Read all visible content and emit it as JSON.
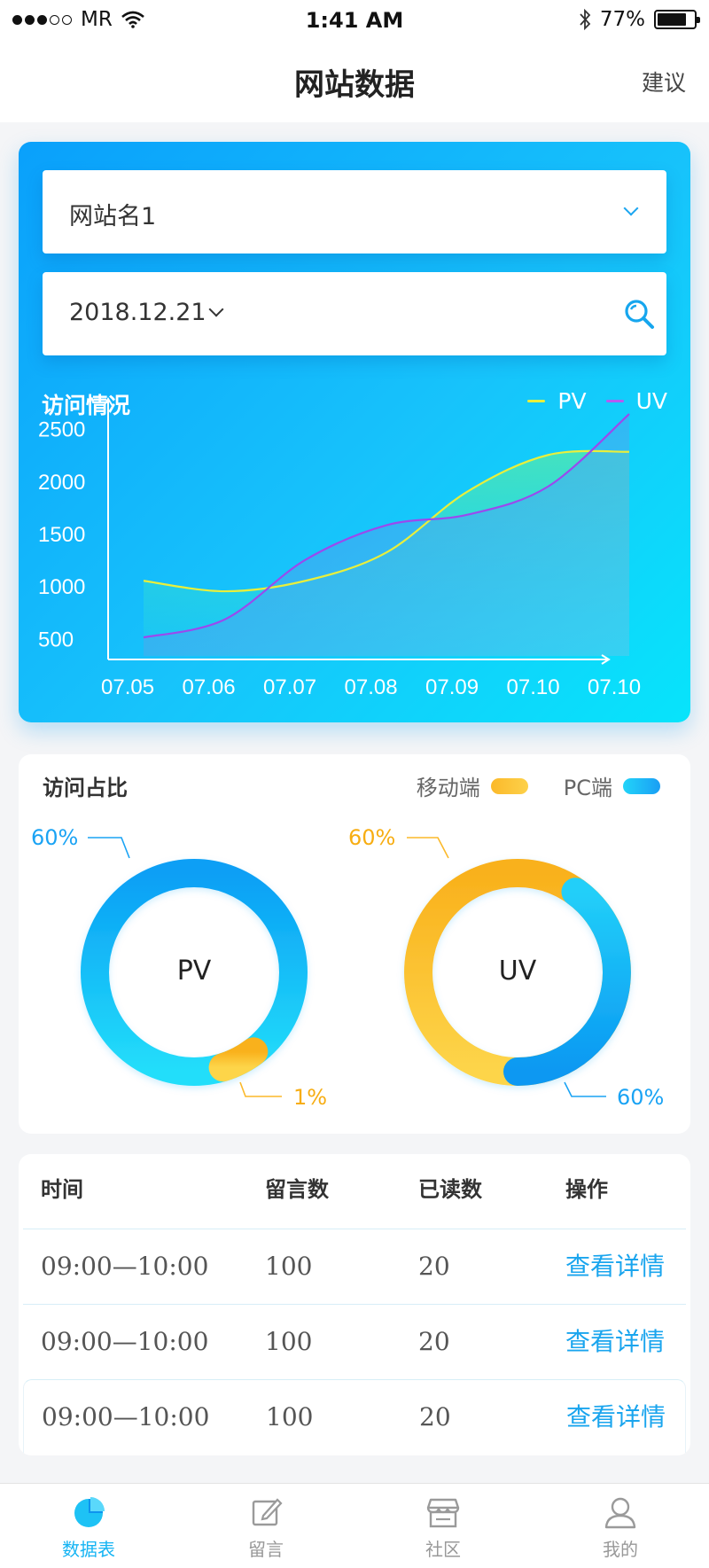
{
  "status_bar": {
    "carrier": "MR",
    "time": "1:41 AM",
    "battery_text": "77%",
    "battery_level": 0.77
  },
  "nav": {
    "title": "网站数据",
    "action": "建议"
  },
  "filters": {
    "site_name": "网站名1",
    "date": "2018.12.21"
  },
  "visits_chart": {
    "title": "访问情况",
    "chart_data": {
      "type": "line",
      "categories": [
        "07.05",
        "07.06",
        "07.07",
        "07.08",
        "07.09",
        "07.10",
        "07.10"
      ],
      "y_ticks": [
        500,
        1000,
        1500,
        2000,
        2500
      ],
      "ylim": [
        300,
        2700
      ],
      "series": [
        {
          "name": "PV",
          "color": "#e9ef3b",
          "values": [
            1050,
            950,
            1050,
            1320,
            1900,
            2250,
            2280
          ]
        },
        {
          "name": "UV",
          "color": "#9b49ee",
          "values": [
            510,
            680,
            1250,
            1580,
            1680,
            1950,
            2640
          ]
        }
      ]
    }
  },
  "share": {
    "title": "访问占比",
    "legend": [
      {
        "label": "移动端",
        "color": "#fbb92a"
      },
      {
        "label": "PC端",
        "color": "#1aaaf5"
      }
    ],
    "donuts": [
      {
        "name": "PV",
        "label_top": "60%",
        "label_bottom": "1%",
        "top_color": "#1aa3f4",
        "bottom_color": "#fbb92a"
      },
      {
        "name": "UV",
        "label_top": "60%",
        "label_bottom": "60%",
        "top_color": "#fbb92a",
        "bottom_color": "#1aa3f4"
      }
    ]
  },
  "table": {
    "headers": [
      "时间",
      "留言数",
      "已读数",
      "操作"
    ],
    "rows": [
      {
        "time": "09:00—10:00",
        "messages": "100",
        "read": "20",
        "action": "查看详情"
      },
      {
        "time": "09:00—10:00",
        "messages": "100",
        "read": "20",
        "action": "查看详情"
      },
      {
        "time": "09:00—10:00",
        "messages": "100",
        "read": "20",
        "action": "查看详情"
      }
    ]
  },
  "tabs": [
    {
      "label": "数据表",
      "icon": "pie-chart-icon",
      "active": true
    },
    {
      "label": "留言",
      "icon": "edit-icon",
      "active": false
    },
    {
      "label": "社区",
      "icon": "store-icon",
      "active": false
    },
    {
      "label": "我的",
      "icon": "user-icon",
      "active": false
    }
  ]
}
